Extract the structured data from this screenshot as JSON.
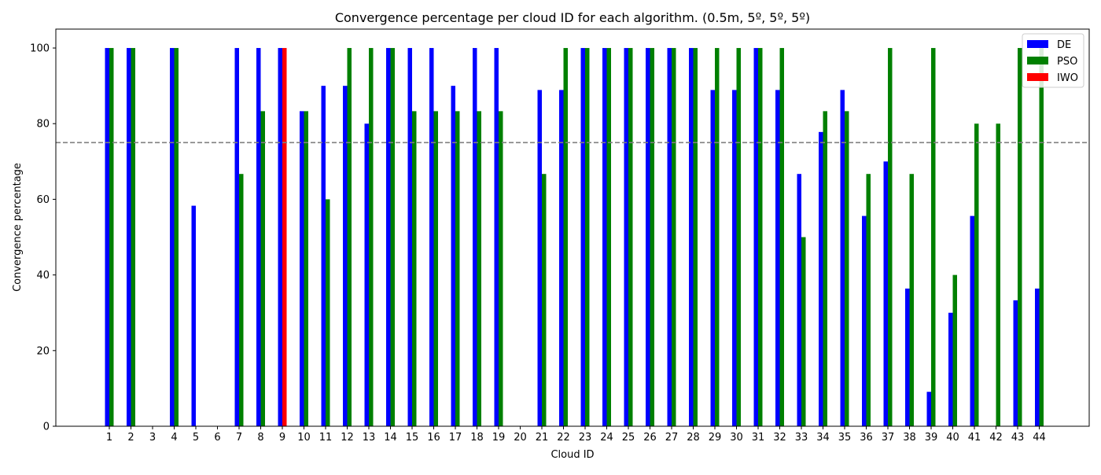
{
  "chart_data": {
    "type": "bar",
    "title": "Convergence percentage per cloud ID for each algorithm. (0.5m, 5º, 5º, 5º)",
    "xlabel": "Cloud ID",
    "ylabel": "Convergence percentage",
    "categories": [
      "1",
      "2",
      "3",
      "4",
      "5",
      "6",
      "7",
      "8",
      "9",
      "10",
      "11",
      "12",
      "13",
      "14",
      "15",
      "16",
      "17",
      "18",
      "19",
      "20",
      "21",
      "22",
      "23",
      "24",
      "25",
      "26",
      "27",
      "28",
      "29",
      "30",
      "31",
      "32",
      "33",
      "34",
      "35",
      "36",
      "37",
      "38",
      "39",
      "40",
      "41",
      "42",
      "43",
      "44"
    ],
    "series": [
      {
        "name": "DE",
        "color": "#0000ff",
        "values": [
          100,
          100,
          0,
          100,
          58.3,
          0,
          100,
          100,
          100,
          83.3,
          90,
          90,
          80,
          100,
          100,
          100,
          90,
          100,
          100,
          0,
          88.9,
          88.9,
          100,
          100,
          100,
          100,
          100,
          100,
          88.9,
          88.9,
          100,
          88.9,
          66.7,
          77.8,
          88.9,
          55.6,
          70,
          36.4,
          9.1,
          30,
          55.6,
          0,
          33.3,
          36.4
        ]
      },
      {
        "name": "PSO",
        "color": "#008000",
        "values": [
          100,
          100,
          0,
          100,
          0,
          0,
          66.7,
          83.3,
          50,
          83.3,
          60,
          100,
          100,
          100,
          83.3,
          83.3,
          83.3,
          83.3,
          83.3,
          0,
          66.7,
          100,
          100,
          100,
          100,
          100,
          100,
          100,
          100,
          100,
          100,
          100,
          50,
          83.3,
          83.3,
          66.7,
          100,
          66.7,
          100,
          40,
          80,
          80,
          100,
          100
        ]
      },
      {
        "name": "IWO",
        "color": "#ff0000",
        "values": [
          0,
          0,
          0,
          0,
          0,
          0,
          0,
          0,
          100,
          0,
          0,
          0,
          0,
          0,
          0,
          0,
          0,
          0,
          0,
          0,
          0,
          0,
          0,
          0,
          0,
          0,
          0,
          0,
          0,
          0,
          0,
          0,
          0,
          0,
          0,
          0,
          0,
          0,
          0,
          0,
          0,
          0,
          0,
          0
        ]
      }
    ],
    "ylim": [
      0,
      105
    ],
    "yticks": [
      0,
      20,
      40,
      60,
      80,
      100
    ],
    "reference_line": {
      "y": 75,
      "style": "dashed",
      "color": "#808080"
    },
    "legend_position": "top-right",
    "grid": false
  }
}
